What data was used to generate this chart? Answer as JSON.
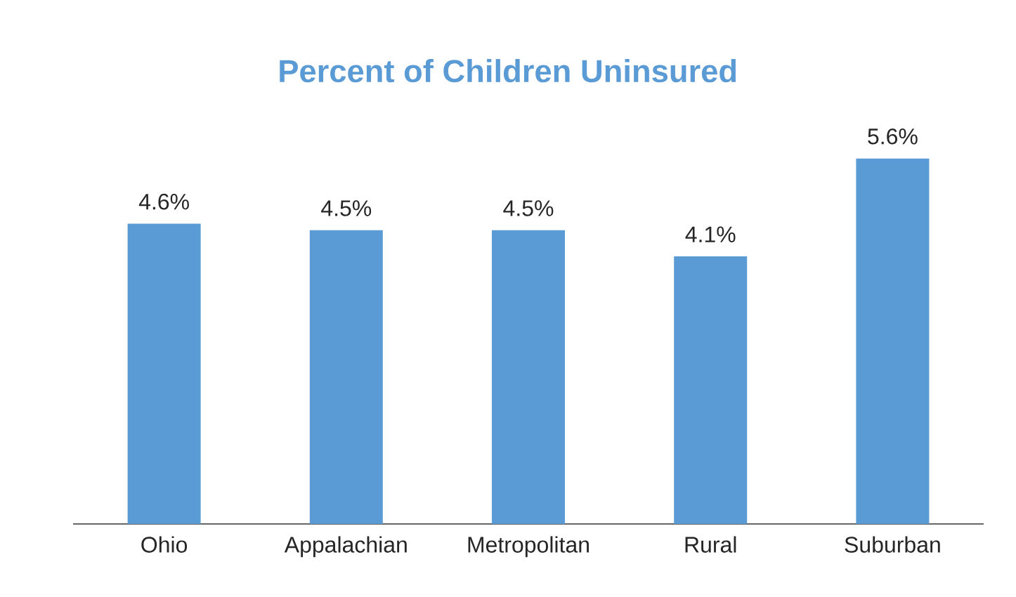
{
  "chart_data": {
    "type": "bar",
    "title": "Percent of Children Uninsured",
    "categories": [
      "Ohio",
      "Appalachian",
      "Metropolitan",
      "Rural",
      "Suburban"
    ],
    "values": [
      4.6,
      4.5,
      4.5,
      4.1,
      5.6
    ],
    "value_labels": [
      "4.6%",
      "4.5%",
      "4.5%",
      "4.1%",
      "5.6%"
    ],
    "color": "#5b9bd5",
    "tick_labels": "x"
  }
}
